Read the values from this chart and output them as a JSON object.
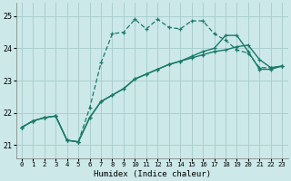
{
  "xlabel": "Humidex (Indice chaleur)",
  "bg_color": "#cce8e8",
  "grid_color": "#aacfcf",
  "line_color": "#1a7a6a",
  "x_ticks": [
    0,
    1,
    2,
    3,
    4,
    5,
    6,
    7,
    8,
    9,
    10,
    11,
    12,
    13,
    14,
    15,
    16,
    17,
    18,
    19,
    20,
    21,
    22,
    23
  ],
  "y_ticks": [
    21,
    22,
    23,
    24,
    25
  ],
  "ylim": [
    20.6,
    25.4
  ],
  "xlim": [
    -0.5,
    23.5
  ],
  "line1_x": [
    0,
    1,
    2,
    3,
    4,
    5,
    6,
    7,
    8,
    9,
    10,
    11,
    12,
    13,
    14,
    15,
    16,
    17,
    18,
    19,
    20,
    21,
    22,
    23
  ],
  "line1_y": [
    21.55,
    21.75,
    21.85,
    21.9,
    21.15,
    21.1,
    21.85,
    22.35,
    22.55,
    22.75,
    23.05,
    23.2,
    23.35,
    23.5,
    23.6,
    23.7,
    23.8,
    23.9,
    23.95,
    24.05,
    24.1,
    23.65,
    23.4,
    23.45
  ],
  "line2_x": [
    0,
    1,
    2,
    3,
    4,
    5,
    6,
    7,
    8,
    9,
    10,
    11,
    12,
    13,
    14,
    15,
    16,
    17,
    18,
    19,
    20,
    21,
    22,
    23
  ],
  "line2_y": [
    21.55,
    21.75,
    21.85,
    21.9,
    21.15,
    21.1,
    22.15,
    23.55,
    24.45,
    24.5,
    24.9,
    24.6,
    24.9,
    24.65,
    24.6,
    24.85,
    24.85,
    24.45,
    24.25,
    23.95,
    23.85,
    23.4,
    23.4,
    23.45
  ],
  "line3_x": [
    0,
    1,
    2,
    3,
    4,
    5,
    6,
    7,
    8,
    9,
    10,
    11,
    12,
    13,
    14,
    15,
    16,
    17,
    18,
    19,
    20,
    21,
    22,
    23
  ],
  "line3_y": [
    21.55,
    21.75,
    21.85,
    21.9,
    21.15,
    21.1,
    21.85,
    22.35,
    22.55,
    22.75,
    23.05,
    23.2,
    23.35,
    23.5,
    23.6,
    23.75,
    23.9,
    24.0,
    24.4,
    24.4,
    23.9,
    23.35,
    23.35,
    23.45
  ]
}
